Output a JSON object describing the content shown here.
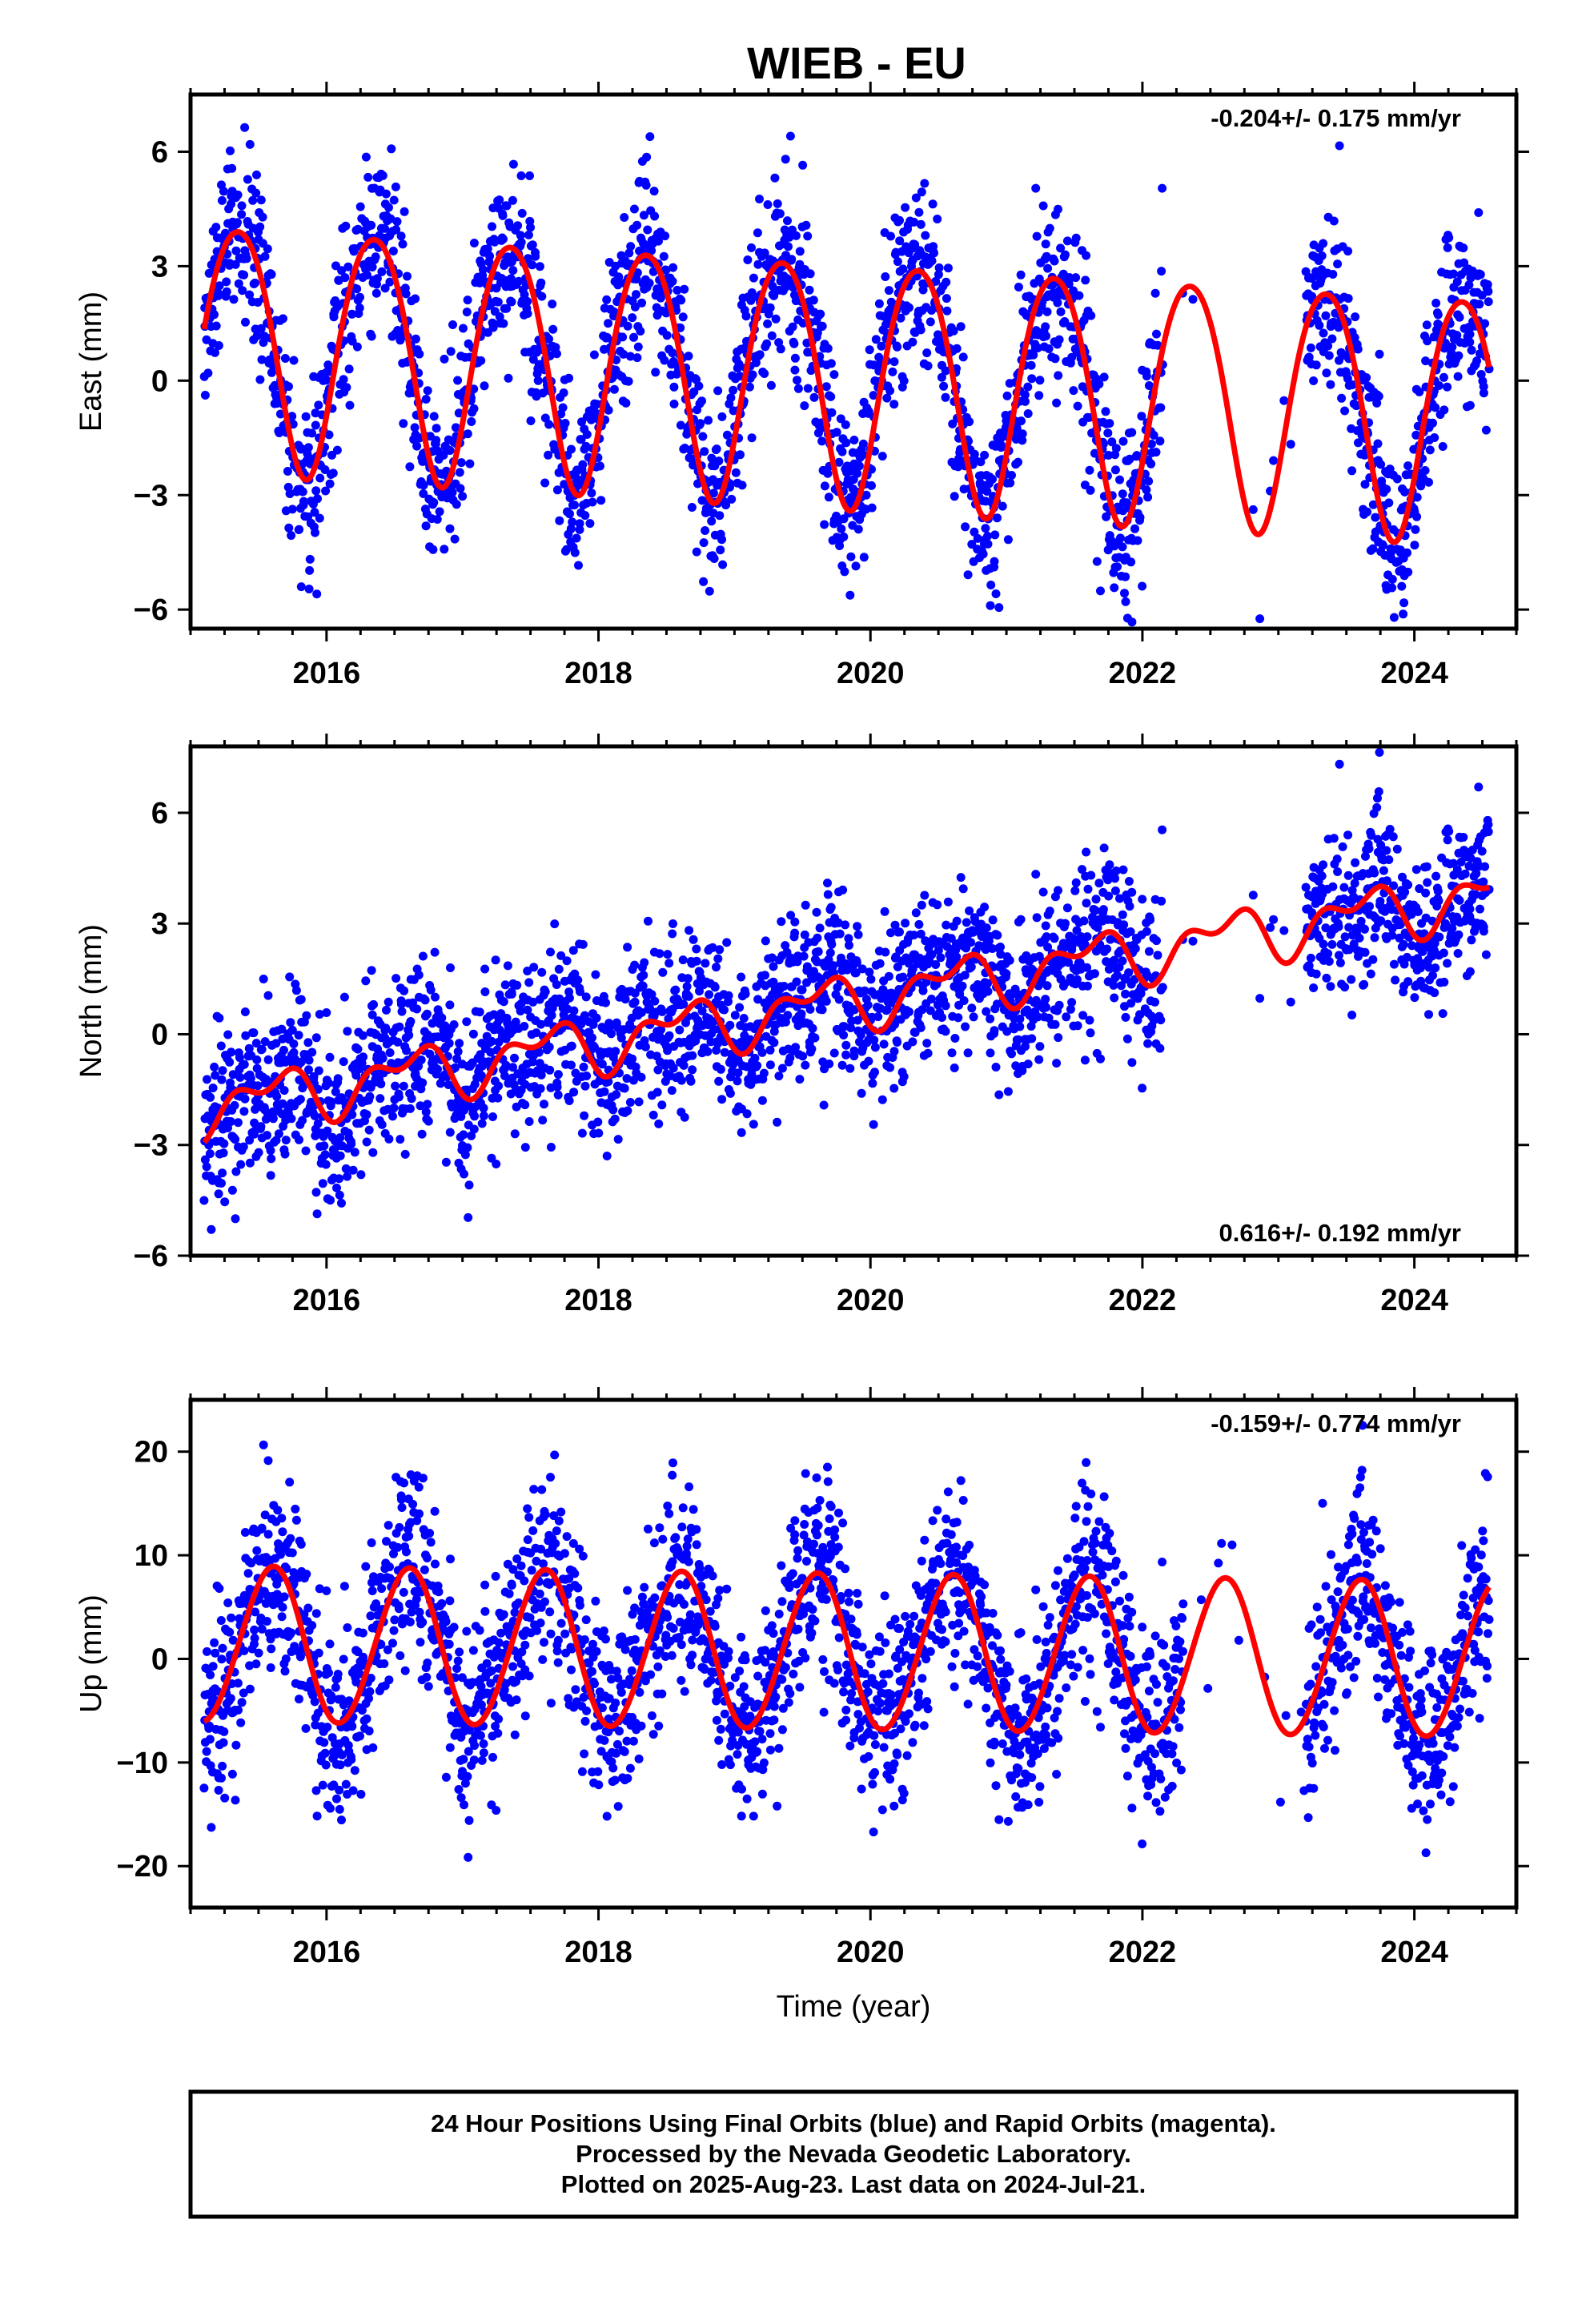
{
  "title": "WIEB - EU",
  "colors": {
    "points": "#0000ff",
    "model": "#ff0000",
    "frame": "#000000"
  },
  "chart_data": [
    {
      "type": "scatter",
      "panel": "east",
      "ylabel": "East (mm)",
      "xlabel": "",
      "xlim": [
        2015.0,
        2024.75
      ],
      "ylim": [
        -6.5,
        7.5
      ],
      "yticks": [
        6,
        3,
        0,
        -3,
        -6
      ],
      "ytick_labels": [
        "6",
        "3",
        "0",
        "−3",
        "−6"
      ],
      "xticks": [
        2016,
        2018,
        2020,
        2022,
        2024
      ],
      "rate_label": "-0.204+/- 0.175 mm/yr",
      "rate_position": "top-right",
      "model": {
        "offset": 1.05,
        "trend": -0.204,
        "annual_amp": 3.2,
        "annual_peak": 0.35,
        "semiannual_amp": 0.3,
        "semiannual_peak": 0.1
      },
      "scatter": {
        "noise": 1.2,
        "start": 2015.1,
        "end": 2024.55,
        "gaps": [
          [
            2022.15,
            2023.2
          ]
        ]
      }
    },
    {
      "type": "scatter",
      "panel": "north",
      "ylabel": "North (mm)",
      "xlabel": "",
      "xlim": [
        2015.0,
        2024.75
      ],
      "ylim": [
        -6.0,
        7.8
      ],
      "yticks": [
        6,
        3,
        0,
        -3,
        -6
      ],
      "ytick_labels": [
        "6",
        "3",
        "0",
        "−3",
        "−6"
      ],
      "xticks": [
        2016,
        2018,
        2020,
        2022,
        2024
      ],
      "rate_label": "0.616+/- 0.192 mm/yr",
      "rate_position": "bottom-right",
      "model": {
        "offset": -2.0,
        "trend": 0.616,
        "annual_amp": 0.6,
        "annual_peak": 0.6,
        "semiannual_amp": 0.4,
        "semiannual_peak": 0.3
      },
      "scatter": {
        "noise": 1.1,
        "start": 2015.1,
        "end": 2024.55,
        "gaps": [
          [
            2022.15,
            2023.2
          ]
        ]
      }
    },
    {
      "type": "scatter",
      "panel": "up",
      "ylabel": "Up (mm)",
      "xlabel": "Time (year)",
      "xlim": [
        2015.0,
        2024.75
      ],
      "ylim": [
        -24.0,
        25.0
      ],
      "yticks": [
        20,
        10,
        0,
        -10,
        -20
      ],
      "ytick_labels": [
        "20",
        "10",
        "0",
        "−10",
        "−20"
      ],
      "xticks": [
        2016,
        2018,
        2020,
        2022,
        2024
      ],
      "rate_label": "-0.159+/- 0.774 mm/yr",
      "rate_position": "top-right",
      "model": {
        "offset": 1.4,
        "trend": -0.159,
        "annual_amp": 7.5,
        "annual_peak": 0.6,
        "semiannual_amp": 0.3,
        "semiannual_peak": 0.2
      },
      "scatter": {
        "noise": 4.5,
        "start": 2015.1,
        "end": 2024.55,
        "gaps": [
          [
            2022.3,
            2023.2
          ]
        ]
      }
    }
  ],
  "footer": {
    "line1": "24 Hour Positions Using Final Orbits (blue) and Rapid Orbits (magenta).",
    "line2": "Processed by the Nevada Geodetic Laboratory.",
    "line3": "Plotted on 2025-Aug-23. Last data on 2024-Jul-21."
  }
}
